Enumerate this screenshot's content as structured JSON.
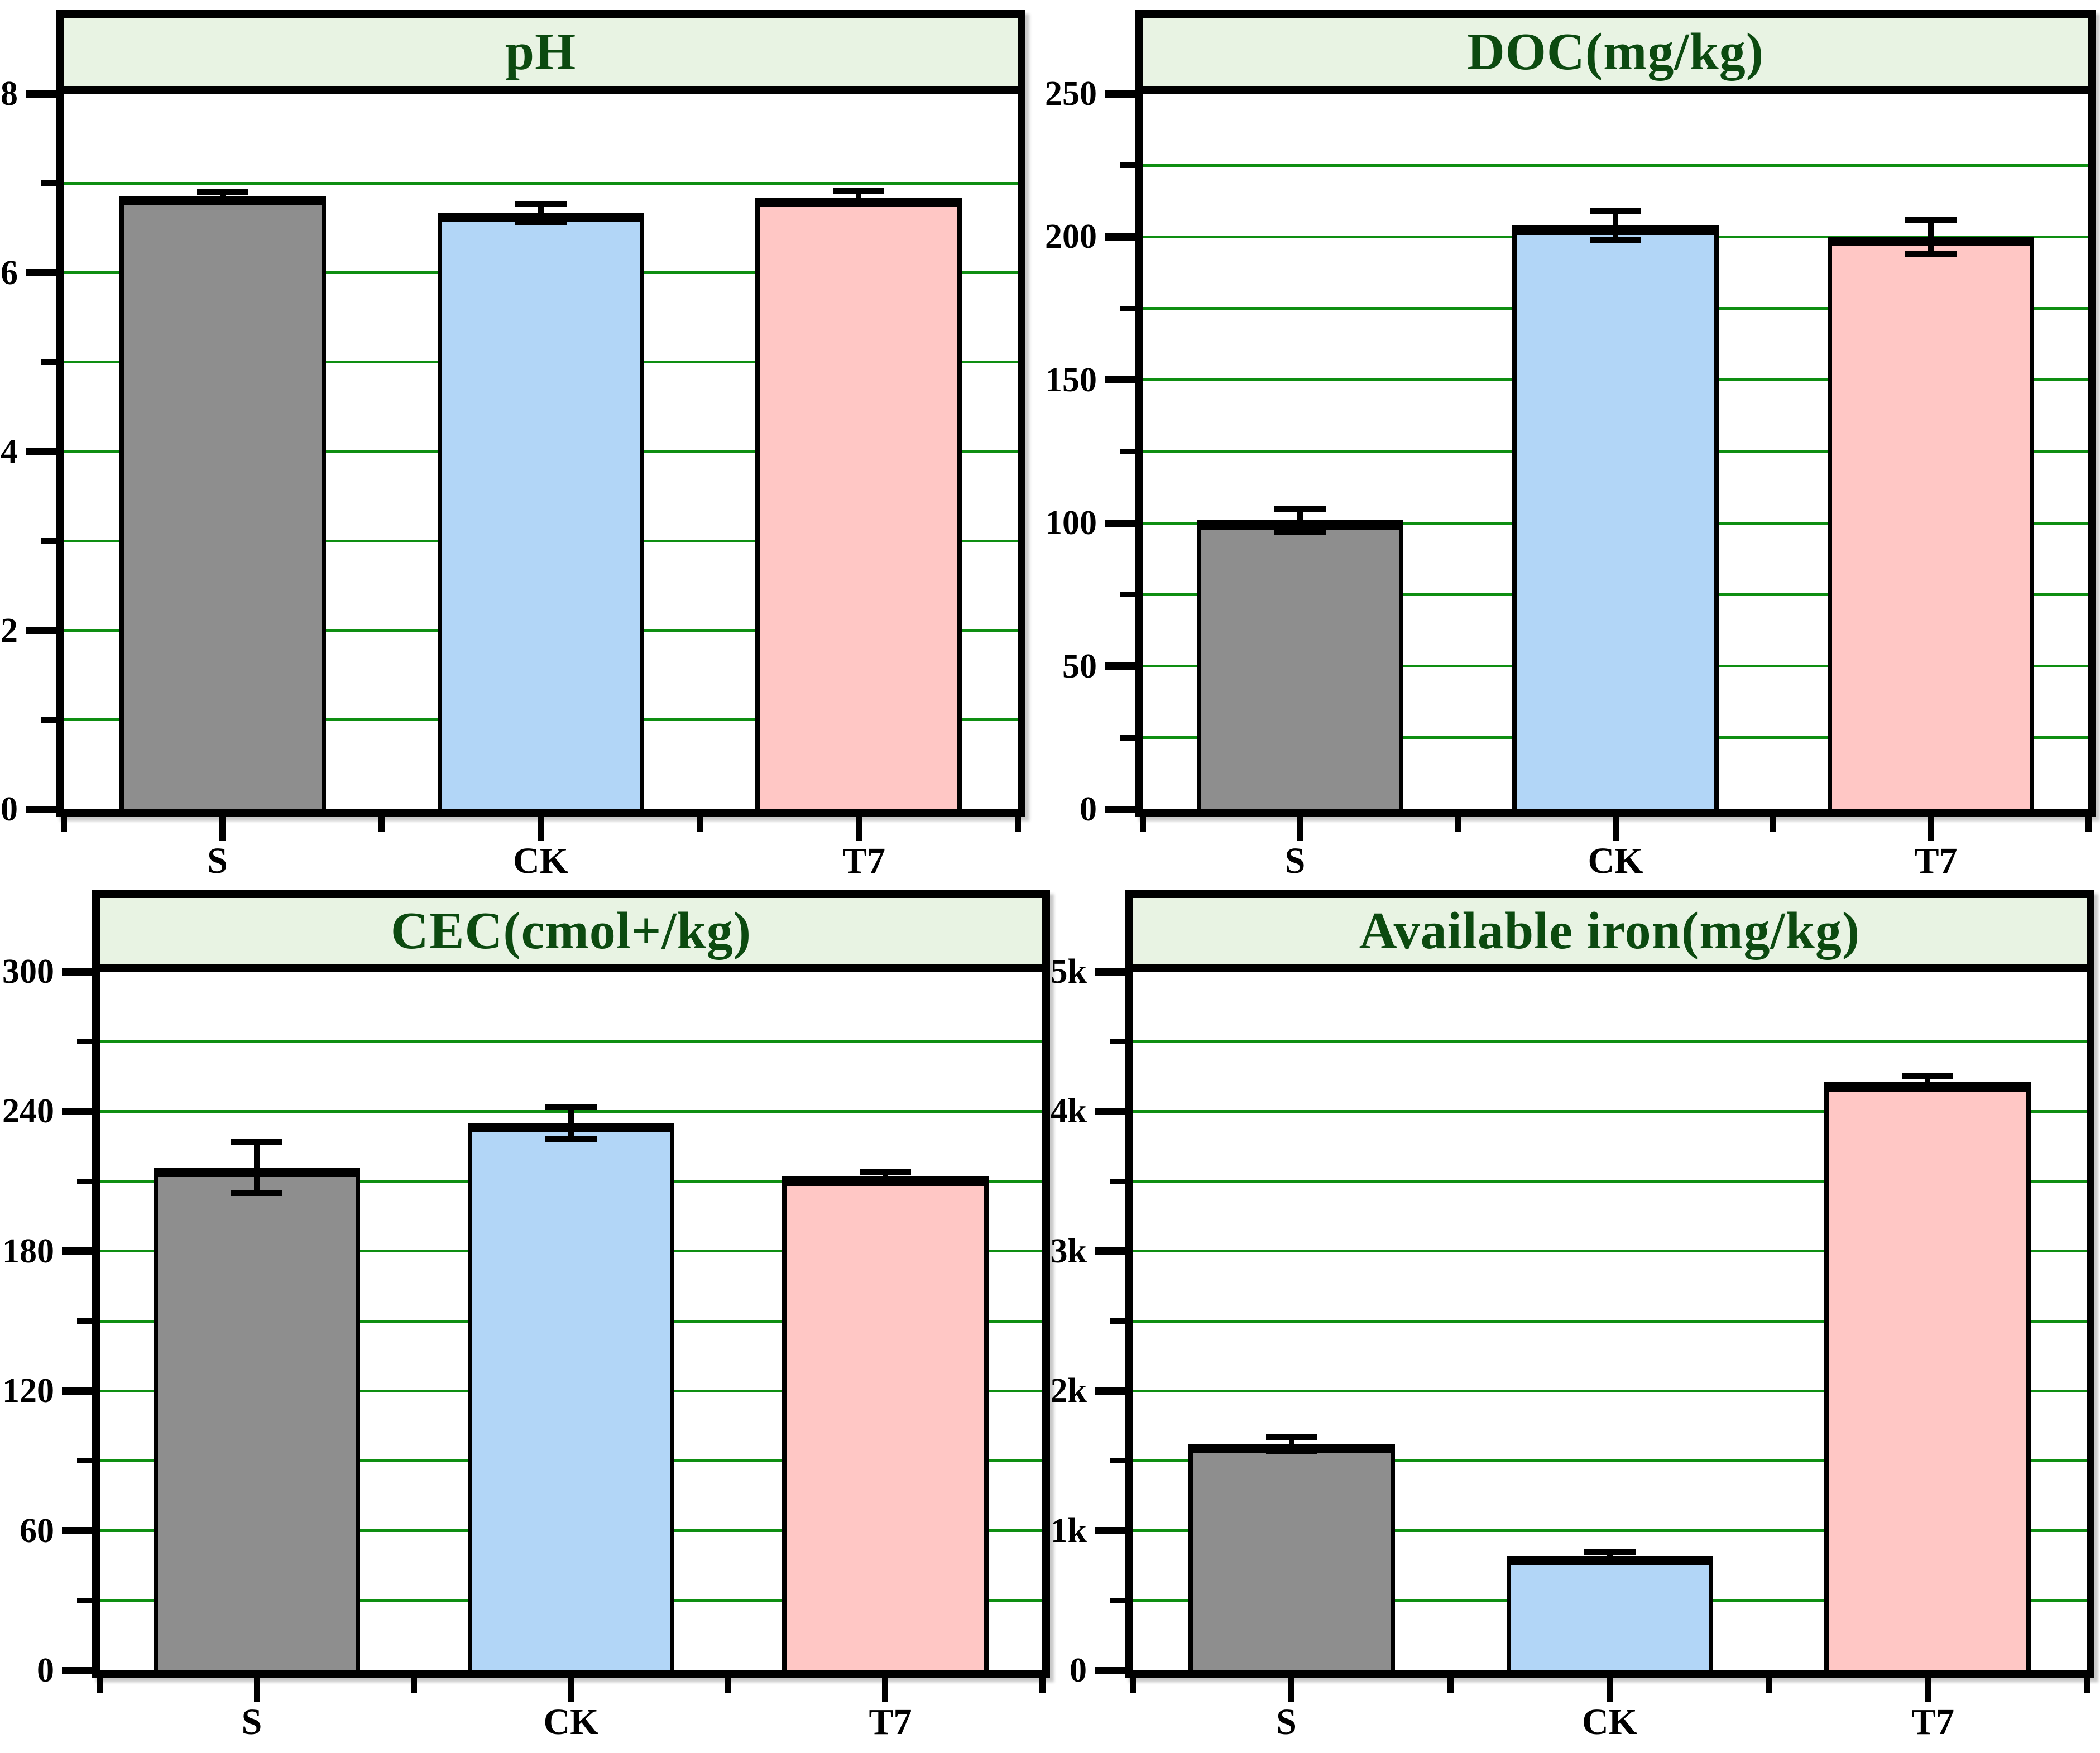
{
  "figure": {
    "categories": [
      "S",
      "CK",
      "T7"
    ],
    "colors": {
      "bar_s": "#8E8E8E",
      "bar_ck": "#B2D6F7",
      "bar_t7": "#FFC7C5",
      "bar_border": "#000000",
      "grid_green": "#0E8E12",
      "header_bg": "#E8F3E3",
      "title_text": "#0C4A10",
      "axis": "#000000",
      "error_bar": "#000000"
    }
  },
  "chart_data": [
    {
      "type": "bar",
      "title": "pH",
      "categories": [
        "S",
        "CK",
        "T7"
      ],
      "values": [
        6.86,
        6.67,
        6.84
      ],
      "errors": [
        0.04,
        0.1,
        0.07
      ],
      "ylim": [
        0,
        8
      ],
      "ytick_labels": [
        "0",
        "2",
        "4",
        "6",
        "8"
      ],
      "grid_step": 1,
      "bar_colors": [
        "#8E8E8E",
        "#B2D6F7",
        "#FFC7C5"
      ],
      "grid": "horizontal-green",
      "legend": "none",
      "xlabel": "",
      "ylabel": ""
    },
    {
      "type": "bar",
      "title": "DOC(mg/kg)",
      "categories": [
        "S",
        "CK",
        "T7"
      ],
      "values": [
        101,
        204,
        200
      ],
      "errors": [
        4,
        5,
        6
      ],
      "ylim": [
        0,
        250
      ],
      "ytick_labels": [
        "0",
        "50",
        "100",
        "150",
        "200",
        "250"
      ],
      "grid_step": 25,
      "bar_colors": [
        "#8E8E8E",
        "#B2D6F7",
        "#FFC7C5"
      ],
      "grid": "horizontal-green",
      "legend": "none",
      "xlabel": "",
      "ylabel": ""
    },
    {
      "type": "bar",
      "title": "CEC(cmol+/kg)",
      "categories": [
        "S",
        "CK",
        "T7"
      ],
      "values": [
        216,
        235,
        212
      ],
      "errors": [
        11,
        7,
        2
      ],
      "ylim": [
        0,
        300
      ],
      "ytick_labels": [
        "0",
        "60",
        "120",
        "180",
        "240",
        "300"
      ],
      "grid_step": 30,
      "bar_colors": [
        "#8E8E8E",
        "#B2D6F7",
        "#FFC7C5"
      ],
      "grid": "horizontal-green",
      "legend": "none",
      "xlabel": "",
      "ylabel": ""
    },
    {
      "type": "bar",
      "title": "Available iron(mg/kg)",
      "categories": [
        "S",
        "CK",
        "T7"
      ],
      "values": [
        1620,
        820,
        4210
      ],
      "errors": [
        50,
        25,
        40
      ],
      "ylim": [
        0,
        5000
      ],
      "ytick_labels": [
        "0",
        "1k",
        "2k",
        "3k",
        "4k",
        "5k"
      ],
      "grid_step": 500,
      "bar_colors": [
        "#8E8E8E",
        "#B2D6F7",
        "#FFC7C5"
      ],
      "grid": "horizontal-green",
      "legend": "none",
      "xlabel": "",
      "ylabel": ""
    }
  ]
}
